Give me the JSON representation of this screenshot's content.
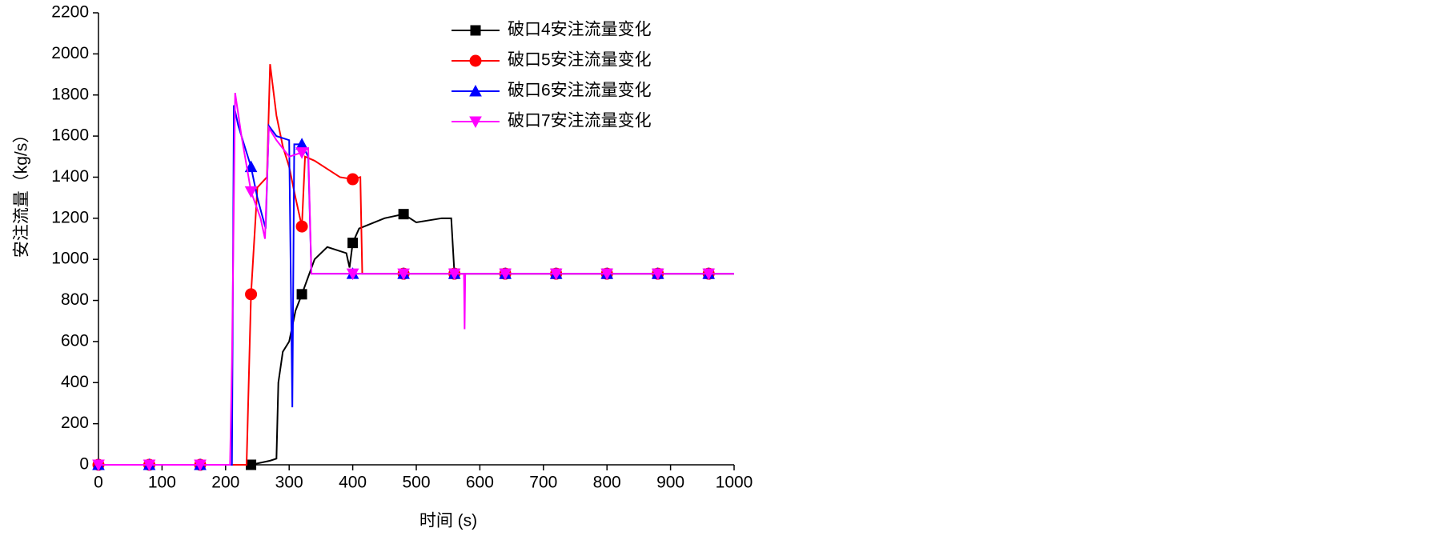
{
  "chart_data": {
    "type": "line",
    "x_label": "时间 (s)",
    "y_label": "安注流量（kg/s）",
    "xlim": [
      0,
      1000
    ],
    "xticks": [
      0,
      100,
      200,
      300,
      400,
      500,
      600,
      700,
      800,
      900,
      1000
    ],
    "ylim": [
      0,
      2200
    ],
    "yticks": [
      0,
      200,
      400,
      600,
      800,
      1000,
      1200,
      1400,
      1600,
      1800,
      2000,
      2200
    ],
    "legend": "top-right",
    "series": [
      {
        "name": "破口4安注流量变化",
        "color": "#000000",
        "marker": "square",
        "x": [
          0,
          80,
          160,
          240,
          270,
          280,
          283,
          290,
          300,
          310,
          320,
          340,
          360,
          390,
          395,
          400,
          410,
          450,
          480,
          500,
          540,
          555,
          560,
          640,
          720,
          800,
          880,
          960,
          1000
        ],
        "values": [
          0,
          0,
          0,
          0,
          20,
          30,
          400,
          550,
          600,
          750,
          830,
          1000,
          1060,
          1030,
          960,
          1080,
          1150,
          1200,
          1220,
          1180,
          1200,
          1200,
          930,
          930,
          930,
          930,
          930,
          930,
          930
        ]
      },
      {
        "name": "破口5安注流量变化",
        "color": "#ff0000",
        "marker": "circle",
        "x": [
          0,
          80,
          160,
          233,
          240,
          250,
          265,
          270,
          280,
          290,
          300,
          310,
          320,
          325,
          340,
          360,
          380,
          400,
          412,
          415,
          480,
          560,
          640,
          720,
          800,
          880,
          960,
          1000
        ],
        "values": [
          0,
          0,
          0,
          0,
          830,
          1350,
          1400,
          1950,
          1700,
          1550,
          1450,
          1300,
          1160,
          1500,
          1480,
          1440,
          1400,
          1390,
          1400,
          930,
          930,
          930,
          930,
          930,
          930,
          930,
          930,
          930
        ]
      },
      {
        "name": "破口6安注流量变化",
        "color": "#0000ff",
        "marker": "triangle",
        "x": [
          0,
          80,
          160,
          210,
          213,
          220,
          240,
          250,
          263,
          268,
          280,
          300,
          305,
          308,
          320,
          330,
          335,
          400,
          480,
          560,
          640,
          720,
          800,
          880,
          960,
          1000
        ],
        "values": [
          0,
          0,
          0,
          0,
          1750,
          1650,
          1450,
          1300,
          1150,
          1650,
          1600,
          1580,
          280,
          1560,
          1560,
          1500,
          930,
          930,
          930,
          930,
          930,
          930,
          930,
          930,
          930,
          930
        ]
      },
      {
        "name": "破口7安注流量变化",
        "color": "#ff00ff",
        "marker": "triangle-down",
        "x": [
          0,
          80,
          160,
          207,
          210,
          215,
          225,
          240,
          255,
          262,
          268,
          280,
          300,
          320,
          330,
          335,
          400,
          480,
          560,
          575,
          576,
          577,
          640,
          720,
          800,
          880,
          960,
          1000
        ],
        "values": [
          0,
          0,
          0,
          0,
          500,
          1810,
          1600,
          1330,
          1200,
          1100,
          1640,
          1580,
          1500,
          1520,
          1540,
          930,
          930,
          930,
          930,
          930,
          660,
          930,
          930,
          930,
          930,
          930,
          930,
          930
        ]
      }
    ]
  }
}
